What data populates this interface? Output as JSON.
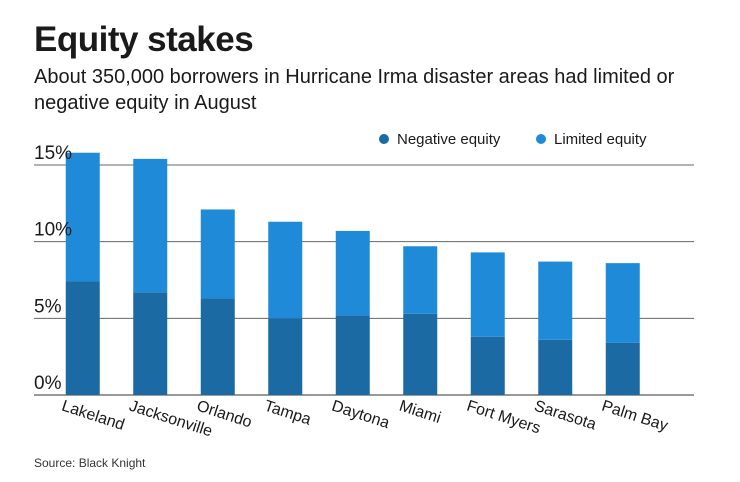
{
  "title": "Equity stakes",
  "subtitle": "About 350,000 borrowers in Hurricane Irma disaster areas had limited or negative equity in August",
  "source": "Source: Black Knight",
  "colors": {
    "negative": "#1b6aa3",
    "limited": "#1f8ad8",
    "grid": "#666666"
  },
  "chart_data": {
    "type": "bar",
    "stacked": true,
    "categories": [
      "Lakeland",
      "Jacksonville",
      "Orlando",
      "Tampa",
      "Daytona",
      "Miami",
      "Fort Myers",
      "Sarasota",
      "Palm Bay"
    ],
    "series": [
      {
        "name": "Negative equity",
        "color": "#1b6aa3",
        "values": [
          7.4,
          6.7,
          6.3,
          5.0,
          5.2,
          5.3,
          3.8,
          3.6,
          3.4
        ]
      },
      {
        "name": "Limited equity",
        "color": "#1f8ad8",
        "values": [
          8.4,
          8.7,
          5.8,
          6.3,
          5.5,
          4.4,
          5.5,
          5.1,
          5.2
        ]
      }
    ],
    "yticks": [
      "0%",
      "5%",
      "10%",
      "15%"
    ],
    "ylim": [
      0,
      15
    ],
    "grid": true,
    "legend_position": "top-right"
  }
}
